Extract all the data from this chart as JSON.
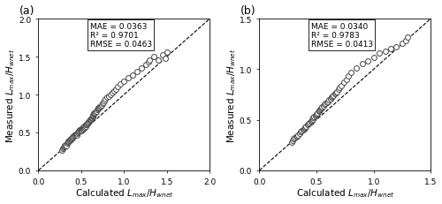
{
  "panel_a": {
    "label": "(a)",
    "xlim": [
      0.0,
      2.0
    ],
    "ylim": [
      0.0,
      2.0
    ],
    "xticks": [
      0.0,
      0.5,
      1.0,
      1.5,
      2.0
    ],
    "yticks": [
      0.0,
      0.5,
      1.0,
      1.5,
      2.0
    ],
    "MAE": 0.0363,
    "R2": 0.9701,
    "RMSE": 0.0463,
    "x": [
      0.27,
      0.28,
      0.29,
      0.3,
      0.3,
      0.31,
      0.32,
      0.33,
      0.34,
      0.35,
      0.35,
      0.36,
      0.37,
      0.38,
      0.38,
      0.39,
      0.4,
      0.4,
      0.41,
      0.42,
      0.43,
      0.44,
      0.44,
      0.45,
      0.45,
      0.46,
      0.47,
      0.47,
      0.48,
      0.49,
      0.5,
      0.5,
      0.51,
      0.51,
      0.52,
      0.52,
      0.53,
      0.53,
      0.54,
      0.55,
      0.55,
      0.56,
      0.57,
      0.57,
      0.58,
      0.59,
      0.6,
      0.6,
      0.61,
      0.62,
      0.62,
      0.63,
      0.63,
      0.64,
      0.65,
      0.65,
      0.66,
      0.67,
      0.68,
      0.69,
      0.7,
      0.7,
      0.71,
      0.72,
      0.73,
      0.74,
      0.75,
      0.76,
      0.77,
      0.78,
      0.8,
      0.82,
      0.84,
      0.86,
      0.88,
      0.9,
      0.92,
      0.95,
      1.0,
      1.05,
      1.1,
      1.15,
      1.2,
      1.25,
      1.28,
      1.3,
      1.35,
      1.4,
      1.45,
      1.48,
      1.5
    ],
    "y": [
      0.27,
      0.29,
      0.3,
      0.31,
      0.33,
      0.32,
      0.34,
      0.33,
      0.36,
      0.37,
      0.38,
      0.39,
      0.4,
      0.41,
      0.42,
      0.42,
      0.43,
      0.44,
      0.45,
      0.46,
      0.47,
      0.48,
      0.48,
      0.47,
      0.49,
      0.5,
      0.51,
      0.52,
      0.53,
      0.54,
      0.55,
      0.52,
      0.54,
      0.56,
      0.55,
      0.57,
      0.56,
      0.58,
      0.57,
      0.58,
      0.6,
      0.61,
      0.62,
      0.63,
      0.64,
      0.65,
      0.66,
      0.67,
      0.68,
      0.69,
      0.7,
      0.71,
      0.72,
      0.73,
      0.74,
      0.75,
      0.76,
      0.77,
      0.78,
      0.8,
      0.81,
      0.82,
      0.83,
      0.84,
      0.85,
      0.86,
      0.88,
      0.9,
      0.92,
      0.94,
      0.96,
      0.98,
      1.0,
      1.02,
      1.05,
      1.07,
      1.1,
      1.14,
      1.18,
      1.22,
      1.26,
      1.3,
      1.35,
      1.4,
      1.43,
      1.45,
      1.5,
      1.45,
      1.52,
      1.48,
      1.56
    ]
  },
  "panel_b": {
    "label": "(b)",
    "xlim": [
      0.0,
      1.5
    ],
    "ylim": [
      0.0,
      1.5
    ],
    "xticks": [
      0.0,
      0.5,
      1.0,
      1.5
    ],
    "yticks": [
      0.0,
      0.5,
      1.0,
      1.5
    ],
    "MAE": 0.034,
    "R2": 0.9783,
    "RMSE": 0.0413,
    "x": [
      0.28,
      0.29,
      0.3,
      0.31,
      0.32,
      0.33,
      0.34,
      0.35,
      0.36,
      0.37,
      0.38,
      0.39,
      0.4,
      0.4,
      0.41,
      0.42,
      0.43,
      0.44,
      0.45,
      0.45,
      0.46,
      0.47,
      0.47,
      0.48,
      0.49,
      0.5,
      0.5,
      0.51,
      0.52,
      0.52,
      0.53,
      0.54,
      0.55,
      0.55,
      0.56,
      0.57,
      0.58,
      0.59,
      0.6,
      0.61,
      0.62,
      0.63,
      0.64,
      0.65,
      0.66,
      0.67,
      0.68,
      0.69,
      0.7,
      0.72,
      0.74,
      0.76,
      0.78,
      0.8,
      0.85,
      0.9,
      0.95,
      1.0,
      1.05,
      1.1,
      1.15,
      1.2,
      1.25,
      1.28,
      1.3
    ],
    "y": [
      0.28,
      0.3,
      0.31,
      0.32,
      0.33,
      0.34,
      0.35,
      0.37,
      0.38,
      0.39,
      0.4,
      0.41,
      0.42,
      0.43,
      0.44,
      0.45,
      0.46,
      0.47,
      0.48,
      0.49,
      0.5,
      0.51,
      0.52,
      0.53,
      0.54,
      0.55,
      0.56,
      0.57,
      0.58,
      0.59,
      0.6,
      0.61,
      0.62,
      0.63,
      0.64,
      0.65,
      0.66,
      0.67,
      0.68,
      0.7,
      0.71,
      0.72,
      0.73,
      0.74,
      0.76,
      0.77,
      0.78,
      0.8,
      0.82,
      0.84,
      0.87,
      0.9,
      0.93,
      0.97,
      1.01,
      1.06,
      1.08,
      1.12,
      1.16,
      1.18,
      1.2,
      1.22,
      1.26,
      1.28,
      1.32
    ]
  },
  "xlabel": "Calculated $L_{max}/H_{wnet}$",
  "ylabel": "Measured $L_{max}/H_{wnet}$",
  "marker_size": 18,
  "marker_color": "white",
  "marker_edgecolor": "#444444",
  "marker_edgewidth": 0.7,
  "line_color": "black",
  "line_style": "--",
  "text_fontsize": 6.5,
  "label_fontsize": 7.5,
  "tick_fontsize": 6.5,
  "panel_label_fontsize": 9,
  "background_color": "#ffffff"
}
